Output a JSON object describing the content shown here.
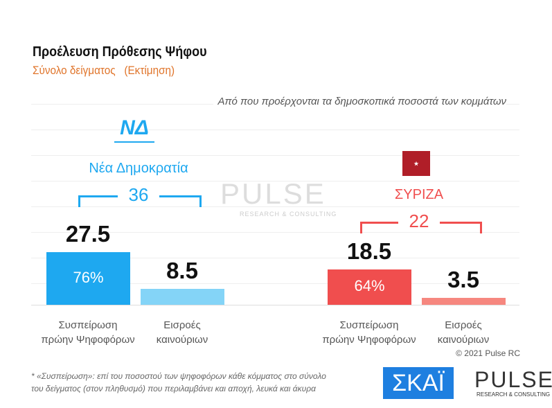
{
  "title": "Προέλευση Πρόθεσης Ψήφου",
  "subtitle": "Σύνολο δείγματος   (Εκτίμηση)",
  "note": "Από που προέρχονται τα δημοσκοπικά ποσοστά των κομμάτων",
  "copyright": "© 2021 Pulse RC",
  "footnote_1": "*  «Συσπείρωση»: επί του ποσοστού των ψηφοφόρων κάθε κόμματος στο σύνολο",
  "footnote_2": "του δείγματος (στον πληθυσμό) που περιλαμβάνει και αποχή, λευκά και άκυρα",
  "logos": {
    "nd": "ΝΔ",
    "skai": "ΣΚΑΪ",
    "pulse": "PULSE",
    "pulse_sub": "RESEARCH & CONSULTING"
  },
  "colors": {
    "nd": "#1ea8f0",
    "nd_light": "#84d4f7",
    "syriza": "#f04e4e",
    "syriza_light": "#f6877f"
  },
  "chart_data": {
    "type": "bar",
    "title": "Προέλευση Πρόθεσης Ψήφου",
    "categories": [
      "Συσπείρωση πρώην Ψηφοφόρων",
      "Εισροές καινούριων"
    ],
    "ylim": [
      0,
      30
    ],
    "parties": [
      {
        "name": "Νέα Δημοκρατία",
        "total": "36",
        "values": [
          27.5,
          8.5
        ],
        "labels": [
          "27.5",
          "8.5"
        ],
        "retention_pct": "76%",
        "cat1": [
          "Συσπείρωση",
          "πρώην Ψηφοφόρων"
        ],
        "cat2": [
          "Εισροές",
          "καινούριων"
        ]
      },
      {
        "name": "ΣΥΡΙΖΑ",
        "total": "22",
        "values": [
          18.5,
          3.5
        ],
        "labels": [
          "18.5",
          "3.5"
        ],
        "retention_pct": "64%",
        "cat1": [
          "Συσπείρωση",
          "πρώην Ψηφοφόρων"
        ],
        "cat2": [
          "Εισροές",
          "καινούριων"
        ]
      }
    ]
  }
}
